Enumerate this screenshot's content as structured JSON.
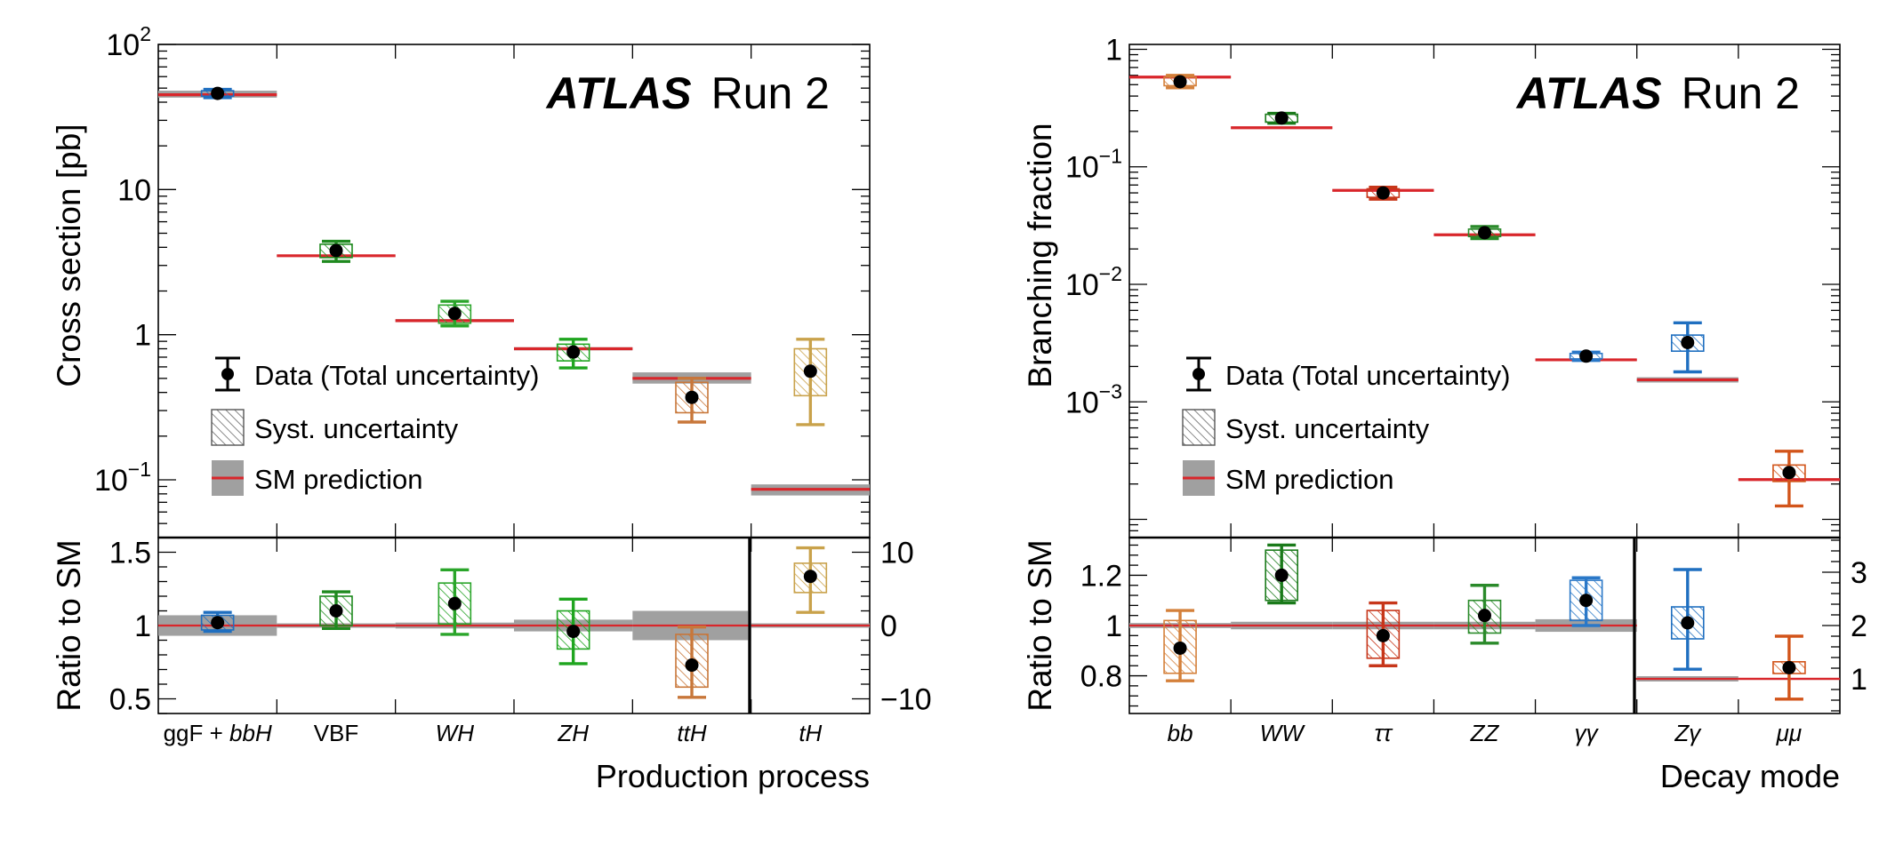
{
  "colors": {
    "sm_line": "#d9262b",
    "sm_band": "#a0a0a0",
    "data_point": "#000000",
    "ggf": "#1f6fc0",
    "vbf": "#1f8a1f",
    "wh": "#2aa52a",
    "zh": "#1fa51f",
    "tth": "#c8773a",
    "th": "#c9a24b",
    "bb": "#d4803a",
    "ww": "#1a7a1a",
    "tautau": "#c7361a",
    "zz": "#2a8a2a",
    "gamgam": "#2a78c8",
    "zgam": "#1f6fc0",
    "mumu": "#d2541a"
  },
  "chart_data": [
    {
      "type": "scatter",
      "subtype": "cross-section summary with ratio panel",
      "title_bold": "ATLAS",
      "title_rest": "Run 2",
      "xlabel": "Production process",
      "ylabel": "Cross section [pb]",
      "ratio_ylabel": "Ratio to SM",
      "yscale": "log",
      "ylim": [
        0.04,
        100
      ],
      "y_ticks": [
        {
          "v": 100,
          "base": "10",
          "exp": "2"
        },
        {
          "v": 10,
          "base": "10",
          "exp": ""
        },
        {
          "v": 1,
          "base": "1",
          "exp": ""
        },
        {
          "v": 0.1,
          "base": "10",
          "exp": "−1"
        }
      ],
      "ratio_ylim": [
        0.4,
        1.6
      ],
      "ratio_ticks": [
        "0.5",
        "1",
        "1.5"
      ],
      "ratio_tick_values": [
        0.5,
        1,
        1.5
      ],
      "ratio_right_ylim": [
        -12,
        12
      ],
      "ratio_right_ticks": [
        "−10",
        "0",
        "10"
      ],
      "ratio_right_tick_values": [
        -10,
        0,
        10
      ],
      "right_axis_from_category": 5,
      "legend": {
        "position": "center-left",
        "entries": [
          "Data (Total uncertainty)",
          "Syst. uncertainty",
          "SM prediction"
        ]
      },
      "categories": [
        {
          "label": "ggF + ",
          "label_it": "bbH",
          "color_key": "ggf"
        },
        {
          "label": "VBF",
          "label_it": "",
          "color_key": "vbf"
        },
        {
          "label": "",
          "label_it": "WH",
          "color_key": "wh"
        },
        {
          "label": "",
          "label_it": "ZH",
          "color_key": "zh"
        },
        {
          "label": "",
          "label_it": "ttH",
          "color_key": "tth"
        },
        {
          "label": "",
          "label_it": "tH",
          "color_key": "th"
        }
      ],
      "measurements": [
        {
          "value": 46,
          "tot_lo": 43,
          "tot_hi": 49,
          "syst_lo": 44,
          "syst_hi": 48,
          "sm": 45,
          "sm_lo": 43,
          "sm_hi": 48,
          "ratio": 1.02,
          "r_tot_lo": 0.96,
          "r_tot_hi": 1.09,
          "r_syst_lo": 0.97,
          "r_syst_hi": 1.07,
          "r_sm_lo": 0.93,
          "r_sm_hi": 1.07
        },
        {
          "value": 3.8,
          "tot_lo": 3.2,
          "tot_hi": 4.4,
          "syst_lo": 3.4,
          "syst_hi": 4.2,
          "sm": 3.5,
          "sm_lo": 3.44,
          "sm_hi": 3.56,
          "ratio": 1.1,
          "r_tot_lo": 0.98,
          "r_tot_hi": 1.23,
          "r_syst_lo": 1.0,
          "r_syst_hi": 1.2,
          "r_sm_lo": 0.985,
          "r_sm_hi": 1.015
        },
        {
          "value": 1.4,
          "tot_lo": 1.15,
          "tot_hi": 1.7,
          "syst_lo": 1.2,
          "syst_hi": 1.6,
          "sm": 1.25,
          "sm_lo": 1.22,
          "sm_hi": 1.28,
          "ratio": 1.15,
          "r_tot_lo": 0.94,
          "r_tot_hi": 1.38,
          "r_syst_lo": 1.01,
          "r_syst_hi": 1.29,
          "r_sm_lo": 0.98,
          "r_sm_hi": 1.02
        },
        {
          "value": 0.76,
          "tot_lo": 0.59,
          "tot_hi": 0.93,
          "syst_lo": 0.66,
          "syst_hi": 0.86,
          "sm": 0.8,
          "sm_lo": 0.78,
          "sm_hi": 0.82,
          "ratio": 0.96,
          "r_tot_lo": 0.74,
          "r_tot_hi": 1.18,
          "r_syst_lo": 0.84,
          "r_syst_hi": 1.1,
          "r_sm_lo": 0.96,
          "r_sm_hi": 1.04
        },
        {
          "value": 0.37,
          "tot_lo": 0.25,
          "tot_hi": 0.5,
          "syst_lo": 0.29,
          "syst_hi": 0.47,
          "sm": 0.5,
          "sm_lo": 0.46,
          "sm_hi": 0.55,
          "ratio": 0.73,
          "r_tot_lo": 0.51,
          "r_tot_hi": 0.99,
          "r_syst_lo": 0.58,
          "r_syst_hi": 0.94,
          "r_sm_lo": 0.9,
          "r_sm_hi": 1.1
        },
        {
          "value": 0.56,
          "tot_lo": 0.24,
          "tot_hi": 0.93,
          "syst_lo": 0.38,
          "syst_hi": 0.8,
          "sm": 0.086,
          "sm_lo": 0.078,
          "sm_hi": 0.093,
          "ratio": 6.7,
          "r_tot_lo": 1.8,
          "r_tot_hi": 10.6,
          "r_syst_lo": 4.5,
          "r_syst_hi": 8.5,
          "r_sm_lo": -0.3,
          "r_sm_hi": 0.3
        }
      ]
    },
    {
      "type": "scatter",
      "subtype": "branching fraction summary with ratio panel",
      "title_bold": "ATLAS",
      "title_rest": "Run 2",
      "xlabel": "Decay mode",
      "ylabel": "Branching fraction",
      "ratio_ylabel": "Ratio to SM",
      "yscale": "log",
      "ylim": [
        7e-05,
        1.1
      ],
      "y_ticks": [
        {
          "v": 1,
          "base": "1",
          "exp": ""
        },
        {
          "v": 0.1,
          "base": "10",
          "exp": "−1"
        },
        {
          "v": 0.01,
          "base": "10",
          "exp": "−2"
        },
        {
          "v": 0.001,
          "base": "10",
          "exp": "−3"
        }
      ],
      "ratio_ylim": [
        0.65,
        1.35
      ],
      "ratio_ticks": [
        "0.8",
        "1",
        "1.2"
      ],
      "ratio_tick_values": [
        0.8,
        1,
        1.2
      ],
      "ratio_right_ylim": [
        0.35,
        3.65
      ],
      "ratio_right_ticks": [
        "1",
        "2",
        "3"
      ],
      "ratio_right_tick_values": [
        1,
        2,
        3
      ],
      "right_axis_from_category": 5,
      "legend": {
        "position": "center-left",
        "entries": [
          "Data (Total uncertainty)",
          "Syst. uncertainty",
          "SM prediction"
        ]
      },
      "categories": [
        {
          "label": "",
          "label_it": "bb",
          "color_key": "bb"
        },
        {
          "label": "",
          "label_it": "WW",
          "color_key": "ww"
        },
        {
          "label": "",
          "label_it": "ττ",
          "color_key": "tautau"
        },
        {
          "label": "",
          "label_it": "ZZ",
          "color_key": "zz"
        },
        {
          "label": "",
          "label_it": "γγ",
          "color_key": "gamgam"
        },
        {
          "label": "",
          "label_it": "Zγ",
          "color_key": "zgam"
        },
        {
          "label": "",
          "label_it": "μμ",
          "color_key": "mumu"
        }
      ],
      "measurements": [
        {
          "value": 0.53,
          "tot_lo": 0.47,
          "tot_hi": 0.6,
          "syst_lo": 0.49,
          "syst_hi": 0.58,
          "sm": 0.58,
          "sm_lo": 0.57,
          "sm_hi": 0.59,
          "ratio": 0.91,
          "r_tot_lo": 0.78,
          "r_tot_hi": 1.06,
          "r_syst_lo": 0.81,
          "r_syst_hi": 1.02,
          "r_sm_lo": 0.99,
          "r_sm_hi": 1.01
        },
        {
          "value": 0.26,
          "tot_lo": 0.235,
          "tot_hi": 0.285,
          "syst_lo": 0.24,
          "syst_hi": 0.28,
          "sm": 0.215,
          "sm_lo": 0.21,
          "sm_hi": 0.22,
          "ratio": 1.2,
          "r_tot_lo": 1.09,
          "r_tot_hi": 1.32,
          "r_syst_lo": 1.1,
          "r_syst_hi": 1.3,
          "r_sm_lo": 0.985,
          "r_sm_hi": 1.015
        },
        {
          "value": 0.06,
          "tot_lo": 0.053,
          "tot_hi": 0.067,
          "syst_lo": 0.055,
          "syst_hi": 0.065,
          "sm": 0.063,
          "sm_lo": 0.062,
          "sm_hi": 0.064,
          "ratio": 0.96,
          "r_tot_lo": 0.84,
          "r_tot_hi": 1.09,
          "r_syst_lo": 0.87,
          "r_syst_hi": 1.06,
          "r_sm_lo": 0.985,
          "r_sm_hi": 1.015
        },
        {
          "value": 0.0275,
          "tot_lo": 0.0245,
          "tot_hi": 0.031,
          "syst_lo": 0.0255,
          "syst_hi": 0.0295,
          "sm": 0.0264,
          "sm_lo": 0.0261,
          "sm_hi": 0.0267,
          "ratio": 1.04,
          "r_tot_lo": 0.93,
          "r_tot_hi": 1.16,
          "r_syst_lo": 0.97,
          "r_syst_hi": 1.1,
          "r_sm_lo": 0.985,
          "r_sm_hi": 1.015
        },
        {
          "value": 0.00245,
          "tot_lo": 0.00225,
          "tot_hi": 0.00265,
          "syst_lo": 0.00232,
          "syst_hi": 0.00258,
          "sm": 0.00228,
          "sm_lo": 0.00224,
          "sm_hi": 0.00232,
          "ratio": 1.1,
          "r_tot_lo": 1.0,
          "r_tot_hi": 1.19,
          "r_syst_lo": 1.02,
          "r_syst_hi": 1.18,
          "r_sm_lo": 0.975,
          "r_sm_hi": 1.025
        },
        {
          "value": 0.0032,
          "tot_lo": 0.0018,
          "tot_hi": 0.0047,
          "syst_lo": 0.0027,
          "syst_hi": 0.0037,
          "sm": 0.00154,
          "sm_lo": 0.00146,
          "sm_hi": 0.00162,
          "ratio": 2.05,
          "r_tot_lo": 1.18,
          "r_tot_hi": 3.05,
          "r_syst_lo": 1.75,
          "r_syst_hi": 2.35,
          "r_sm_lo": 0.95,
          "r_sm_hi": 1.05
        },
        {
          "value": 0.00025,
          "tot_lo": 0.00013,
          "tot_hi": 0.00038,
          "syst_lo": 0.00021,
          "syst_hi": 0.00029,
          "sm": 0.000218,
          "sm_lo": 0.000213,
          "sm_hi": 0.000223,
          "ratio": 1.21,
          "r_tot_lo": 0.62,
          "r_tot_hi": 1.8,
          "r_syst_lo": 1.1,
          "r_syst_hi": 1.32,
          "r_sm_lo": 0.985,
          "r_sm_hi": 1.015
        }
      ]
    }
  ]
}
